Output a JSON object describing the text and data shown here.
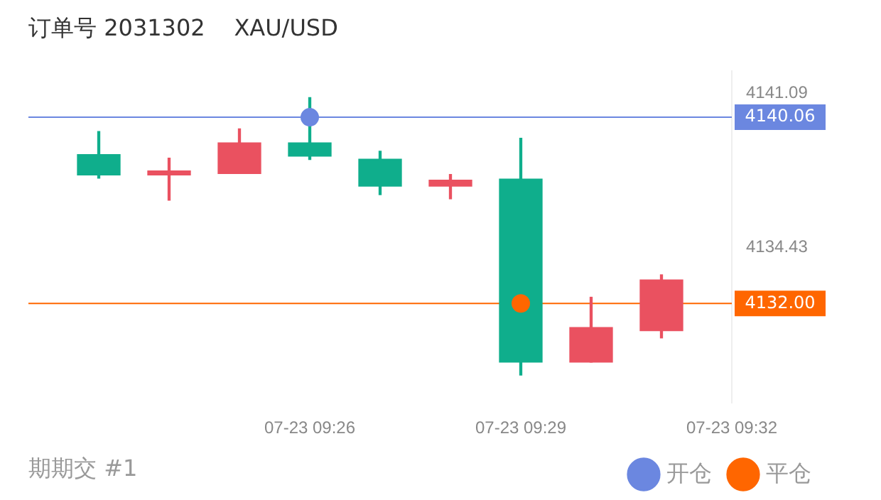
{
  "chart_data": {
    "type": "candlestick",
    "title": "订单号 2031302",
    "subtitle": "XAU/USD",
    "x": [
      "--07-23T09:23",
      "--07-23T09:24",
      "--07-23T09:25",
      "--07-23T09:26",
      "--07-23T09:27",
      "--07-23T09:28",
      "--07-23T09:29",
      "--07-23T09:30",
      "--07-23T09:31"
    ],
    "ohlc": [
      [
        4137.56,
        4139.44,
        4137.42,
        4138.44
      ],
      [
        4137.74,
        4138.29,
        4136.47,
        4137.56
      ],
      [
        4138.95,
        4139.56,
        4137.62,
        4137.62
      ],
      [
        4138.38,
        4140.91,
        4138.23,
        4138.95
      ],
      [
        4137.08,
        4138.59,
        4136.71,
        4138.24
      ],
      [
        4137.34,
        4137.58,
        4136.53,
        4137.08
      ],
      [
        4129.46,
        4139.15,
        4128.9,
        4137.38
      ],
      [
        4130.96,
        4132.27,
        4129.46,
        4129.46
      ],
      [
        4133.02,
        4133.24,
        4130.51,
        4130.82
      ]
    ],
    "colors": [
      "#0fae8c",
      "#ea5160",
      "#ea5160",
      "#0fae8c",
      "#0fae8c",
      "#ea5160",
      "#0fae8c",
      "#ea5160",
      "#ea5160"
    ],
    "series": [
      {
        "type": "scatter",
        "name": "开仓",
        "color": "#6b87e0",
        "x": [
          "--07-23T09:26"
        ],
        "values": [
          4140.06
        ]
      },
      {
        "type": "scatter",
        "name": "平仓",
        "color": "#ff6600",
        "x": [
          "--07-23T09:29"
        ],
        "values": [
          4132.0
        ]
      }
    ],
    "marker": "circle",
    "xlim": [
      "--07-23T09:22",
      "--07-23T09:32"
    ],
    "xticks": [
      {
        "value": "--07-23T09:26",
        "label": "07-23 09:26"
      },
      {
        "value": "--07-23T09:29",
        "label": "07-23 09:29"
      },
      {
        "value": "--07-23T09:32",
        "label": "07-23 09:32"
      }
    ],
    "ylim": [
      4127.7,
      4142.06
    ],
    "yticks": [
      4141.09,
      4134.43
    ],
    "ref_lines": [
      {
        "axis": "y",
        "value": 4140.06,
        "label": "4140.06",
        "color": "#6b87e0"
      },
      {
        "axis": "y",
        "value": 4132.0,
        "label": "4132.00",
        "color": "#ff6600"
      }
    ],
    "annotations": [
      "期期交 #1"
    ],
    "legend": "bottom right"
  }
}
